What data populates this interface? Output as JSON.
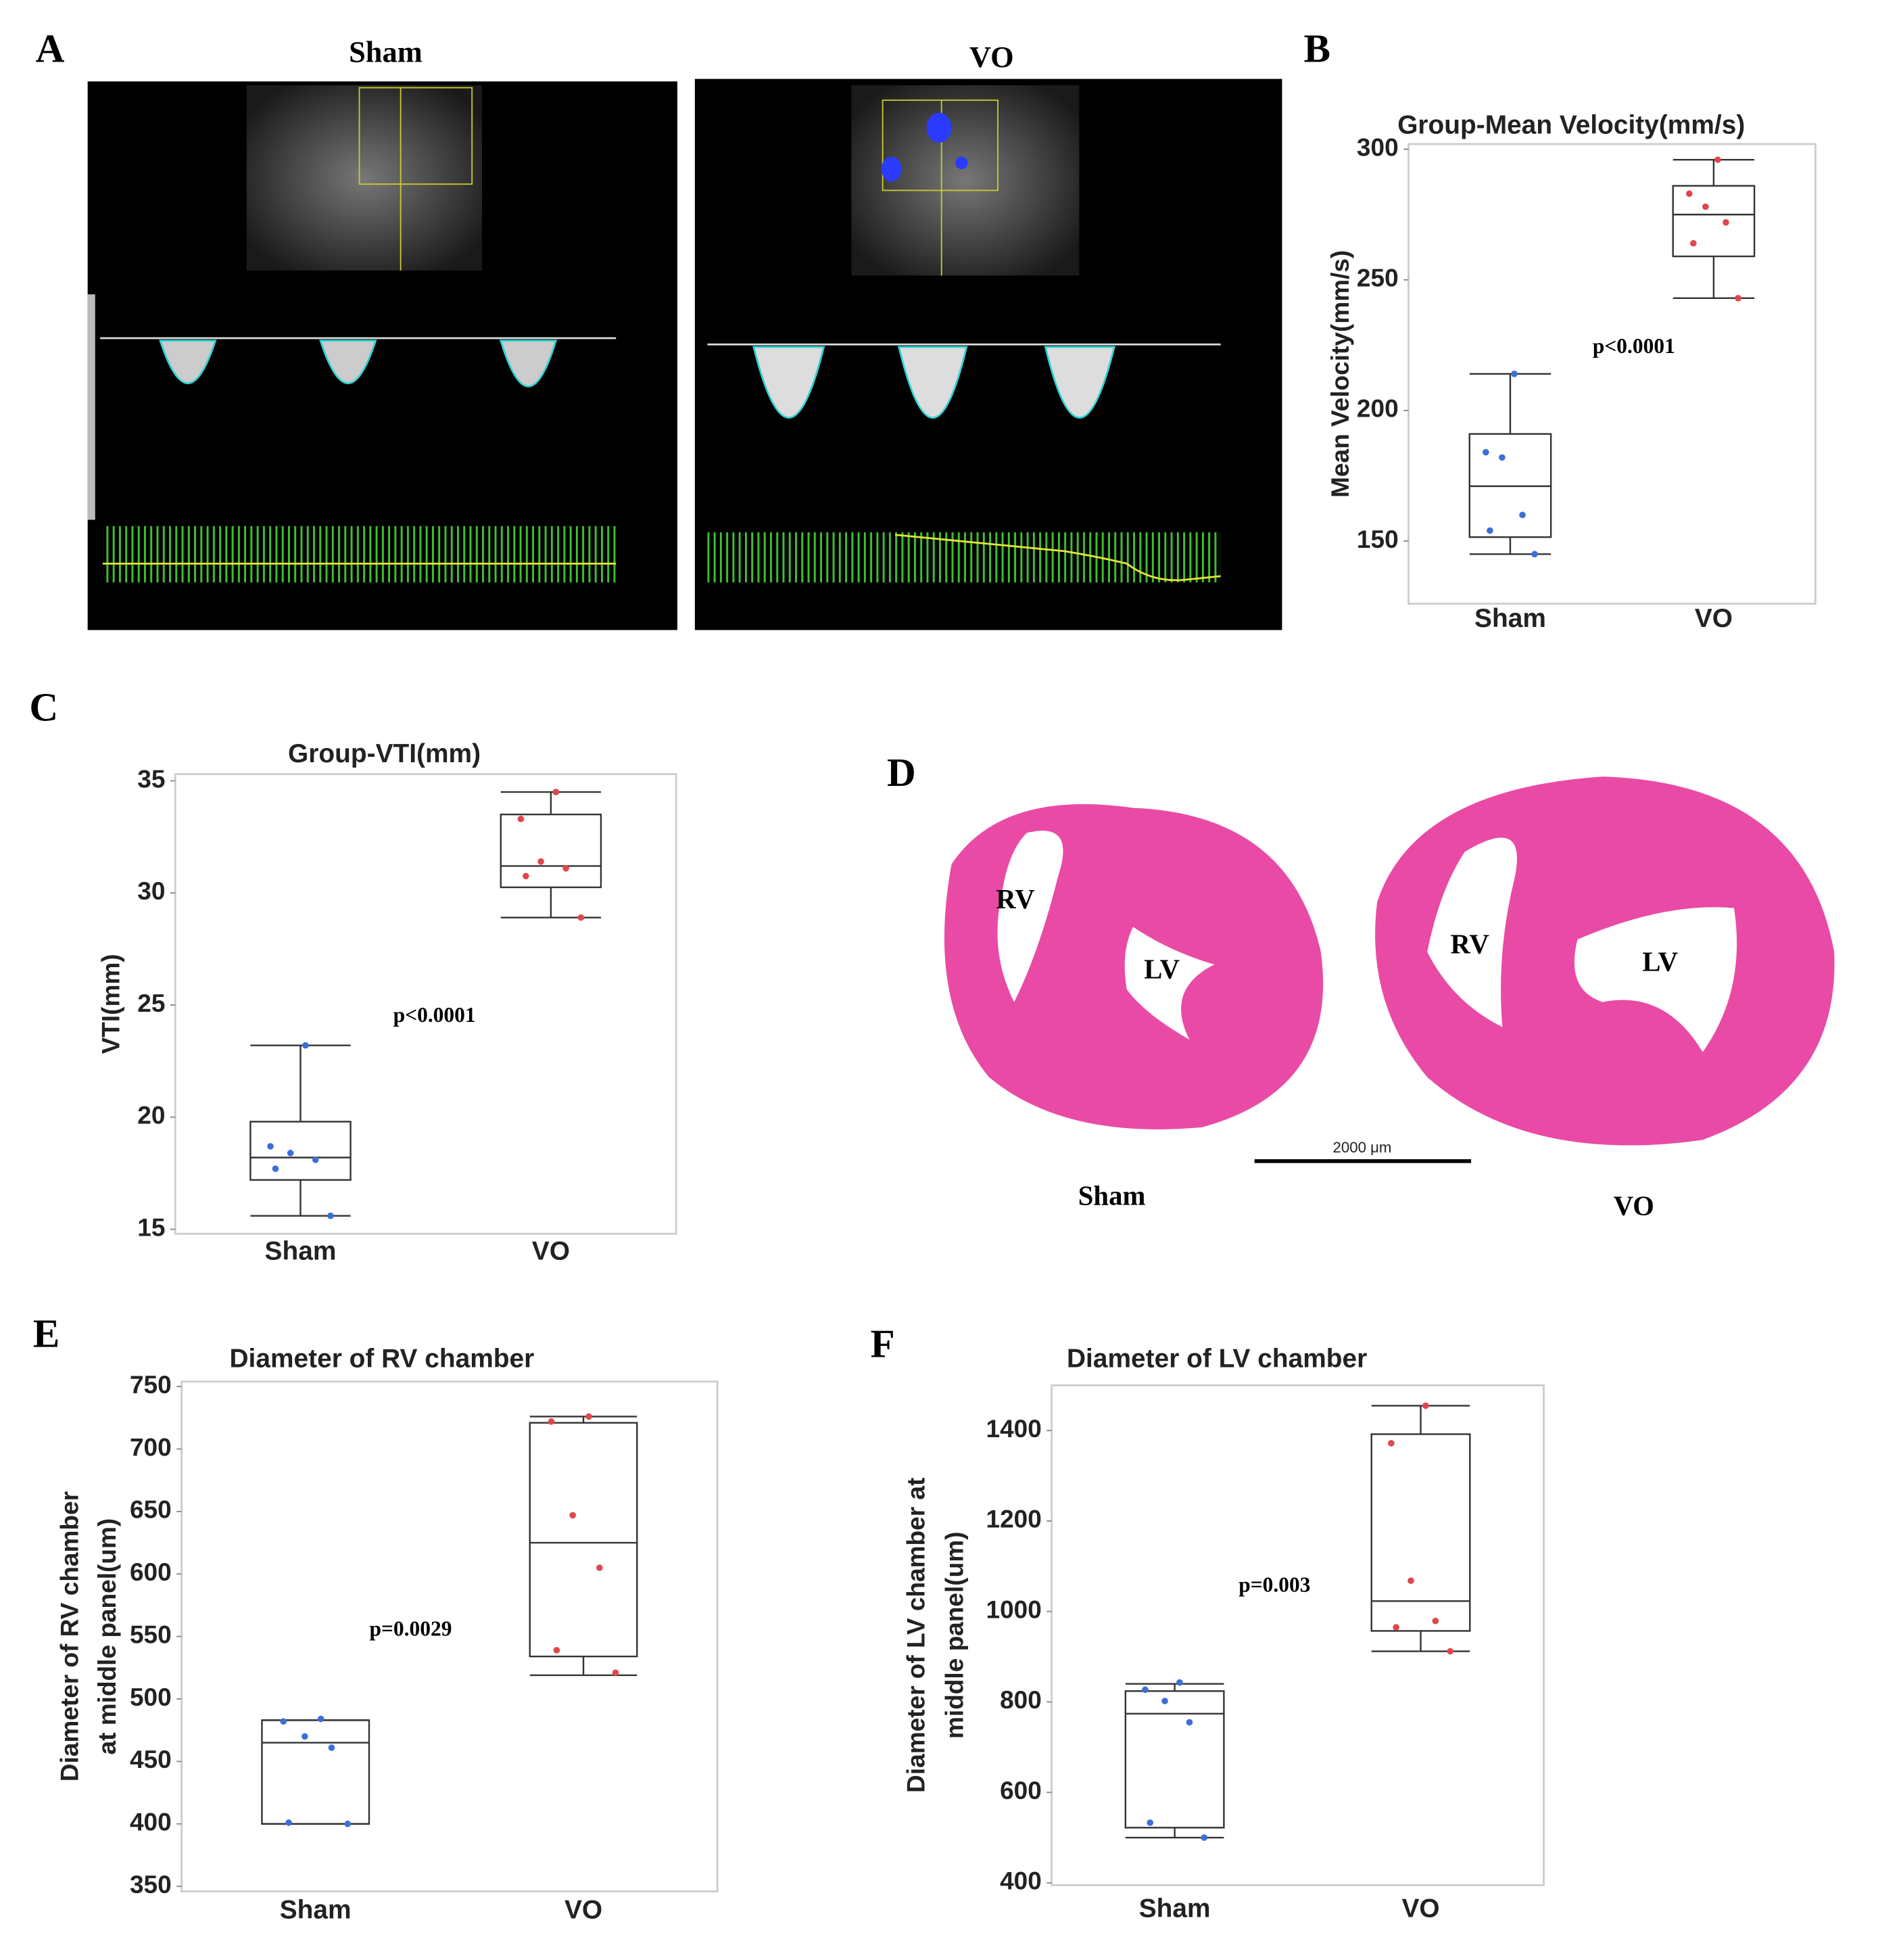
{
  "figure": {
    "panel_labels": [
      "A",
      "B",
      "C",
      "D",
      "E",
      "F"
    ],
    "echo_titles": [
      "Sham",
      "VO"
    ],
    "histology": {
      "chamber_labels": [
        "RV",
        "LV",
        "RV",
        "LV"
      ],
      "scale_bar": "2000 μm",
      "groups": [
        "Sham",
        "VO"
      ]
    }
  },
  "chart_data": [
    {
      "type": "box",
      "title": "Group-Mean Velocity(mm/s)",
      "y_label": [
        "Mean Velocity(mm/s)"
      ],
      "categories": [
        "Sham",
        "VO"
      ],
      "annotation": "p<0.0001",
      "ylim": [
        126,
        302
      ],
      "yticks": [
        150,
        200,
        250,
        300
      ],
      "boxes": [
        {
          "color": "#3b6fd8",
          "whisker_low": 145,
          "q1": 151.5,
          "median": 171,
          "q3": 191,
          "whisker_high": 214,
          "points": [
            214,
            184,
            182,
            160,
            154,
            145
          ]
        },
        {
          "color": "#e0474c",
          "whisker_low": 243,
          "q1": 259,
          "median": 275,
          "q3": 286,
          "whisker_high": 296,
          "points": [
            296,
            283,
            278,
            272,
            264,
            243
          ]
        }
      ]
    },
    {
      "type": "box",
      "title": "Group-VTI(mm)",
      "y_label": [
        "VTI(mm)"
      ],
      "categories": [
        "Sham",
        "VO"
      ],
      "annotation": "p<0.0001",
      "ylim": [
        14.8,
        35.3
      ],
      "yticks": [
        15,
        20,
        25,
        30,
        35
      ],
      "boxes": [
        {
          "color": "#3b6fd8",
          "whisker_low": 15.6,
          "q1": 17.2,
          "median": 18.2,
          "q3": 19.8,
          "whisker_high": 23.2,
          "points": [
            23.2,
            18.7,
            18.4,
            18.1,
            17.7,
            15.6
          ]
        },
        {
          "color": "#e0474c",
          "whisker_low": 28.9,
          "q1": 30.25,
          "median": 31.2,
          "q3": 33.5,
          "whisker_high": 34.5,
          "points": [
            34.5,
            33.3,
            31.4,
            31.1,
            30.75,
            28.9
          ]
        }
      ]
    },
    {
      "type": "box",
      "title": "Diameter of RV chamber",
      "y_label": [
        "Diameter of RV chamber",
        "at middle panel(um)"
      ],
      "categories": [
        "Sham",
        "VO"
      ],
      "annotation": "p=0.0029",
      "ylim": [
        346,
        754
      ],
      "yticks": [
        350,
        400,
        450,
        500,
        550,
        600,
        650,
        700,
        750
      ],
      "boxes": [
        {
          "color": "#3b6fd8",
          "whisker_low": 400,
          "q1": 400,
          "median": 465,
          "q3": 483,
          "whisker_high": 483,
          "points": [
            484,
            482,
            470,
            461,
            401,
            400
          ]
        },
        {
          "color": "#e0474c",
          "whisker_low": 519,
          "q1": 534,
          "median": 625,
          "q3": 721,
          "whisker_high": 726,
          "points": [
            726,
            722,
            647,
            605,
            539,
            521
          ]
        }
      ]
    },
    {
      "type": "box",
      "title": "Diameter of LV chamber",
      "y_label": [
        "Diameter of LV chamber at",
        "middle panel(um)"
      ],
      "categories": [
        "Sham",
        "VO"
      ],
      "annotation": "p=0.003",
      "ylim": [
        395,
        1500
      ],
      "yticks": [
        400,
        600,
        800,
        1000,
        1200,
        1400
      ],
      "boxes": [
        {
          "color": "#3b6fd8",
          "whisker_low": 500,
          "q1": 522,
          "median": 774,
          "q3": 824,
          "whisker_high": 840,
          "points": [
            843,
            827,
            802,
            755,
            533,
            500
          ]
        },
        {
          "color": "#e0474c",
          "whisker_low": 912,
          "q1": 957,
          "median": 1023,
          "q3": 1392,
          "whisker_high": 1455,
          "points": [
            1455,
            1372,
            1068,
            979,
            965,
            912
          ]
        }
      ]
    }
  ]
}
